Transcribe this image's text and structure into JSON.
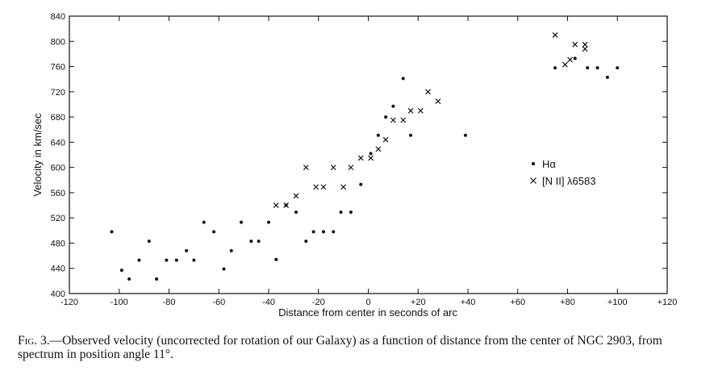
{
  "chart_data": {
    "type": "scatter",
    "xlabel": "Distance from center in seconds of arc",
    "ylabel": "Velocity in km/sec",
    "xlim": [
      -120,
      120
    ],
    "ylim": [
      400,
      840
    ],
    "x_ticks": [
      -120,
      -100,
      -80,
      -60,
      -40,
      -20,
      0,
      20,
      40,
      60,
      80,
      100,
      120
    ],
    "x_tick_labels": [
      "-120",
      "-100",
      "-80",
      "-60",
      "-40",
      "-20",
      "0",
      "+20",
      "+40",
      "+60",
      "+80",
      "+100",
      "+120"
    ],
    "y_ticks": [
      400,
      440,
      480,
      520,
      560,
      600,
      640,
      680,
      720,
      760,
      800,
      840
    ],
    "y_tick_labels": [
      "400",
      "440",
      "480",
      "520",
      "560",
      "600",
      "640",
      "680",
      "720",
      "760",
      "800",
      "840"
    ],
    "grid": false,
    "legend_position": "right",
    "series": [
      {
        "name": "Hα",
        "marker": "dot",
        "points": [
          [
            -103,
            498
          ],
          [
            -99,
            437
          ],
          [
            -96,
            423
          ],
          [
            -92,
            453
          ],
          [
            -88,
            483
          ],
          [
            -85,
            423
          ],
          [
            -81,
            453
          ],
          [
            -77,
            453
          ],
          [
            -73,
            468
          ],
          [
            -70,
            453
          ],
          [
            -66,
            513
          ],
          [
            -62,
            498
          ],
          [
            -58,
            439
          ],
          [
            -55,
            468
          ],
          [
            -51,
            513
          ],
          [
            -47,
            483
          ],
          [
            -44,
            483
          ],
          [
            -40,
            513
          ],
          [
            -37,
            454
          ],
          [
            -33,
            540
          ],
          [
            -29,
            529
          ],
          [
            -25,
            483
          ],
          [
            -22,
            498
          ],
          [
            -18,
            498
          ],
          [
            -14,
            498
          ],
          [
            -11,
            529
          ],
          [
            -7,
            529
          ],
          [
            -3,
            573
          ],
          [
            1,
            622
          ],
          [
            4,
            651
          ],
          [
            7,
            680
          ],
          [
            10,
            697
          ],
          [
            14,
            741
          ],
          [
            17,
            651
          ],
          [
            39,
            651
          ],
          [
            75,
            758
          ],
          [
            83,
            773
          ],
          [
            88,
            758
          ],
          [
            92,
            758
          ],
          [
            96,
            743
          ],
          [
            100,
            758
          ]
        ]
      },
      {
        "name": "[N II] λ6583",
        "marker": "cross",
        "points": [
          [
            -37,
            540
          ],
          [
            -33,
            540
          ],
          [
            -29,
            555
          ],
          [
            -25,
            600
          ],
          [
            -21,
            569
          ],
          [
            -18,
            569
          ],
          [
            -14,
            600
          ],
          [
            -10,
            569
          ],
          [
            -7,
            600
          ],
          [
            -3,
            615
          ],
          [
            1,
            615
          ],
          [
            4,
            629
          ],
          [
            7,
            644
          ],
          [
            10,
            675
          ],
          [
            14,
            675
          ],
          [
            17,
            690
          ],
          [
            21,
            690
          ],
          [
            24,
            720
          ],
          [
            28,
            705
          ],
          [
            75,
            810
          ],
          [
            79,
            763
          ],
          [
            81,
            771
          ],
          [
            83,
            795
          ],
          [
            87,
            795
          ],
          [
            87,
            788
          ]
        ]
      }
    ]
  },
  "caption": {
    "prefix": "Fig. 3.",
    "text": "—Observed velocity (uncorrected for rotation of our Galaxy) as a function of distance from the center of NGC 2903, from spectrum in position angle 11°."
  }
}
